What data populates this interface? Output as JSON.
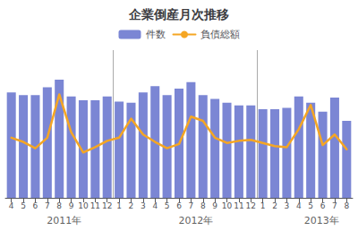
{
  "chart_data": {
    "type": "bar",
    "title": "企業倒産月次推移",
    "categories": [
      "4",
      "5",
      "6",
      "7",
      "8",
      "9",
      "10",
      "11",
      "12",
      "1",
      "2",
      "3",
      "4",
      "5",
      "6",
      "7",
      "8",
      "9",
      "10",
      "11",
      "12",
      "1",
      "2",
      "3",
      "4",
      "5",
      "6",
      "7",
      "8"
    ],
    "series": [
      {
        "name": "件数",
        "type": "bar",
        "color": "#7b86d4",
        "values": [
          82,
          80,
          80,
          86,
          92,
          79,
          76,
          76,
          79,
          75,
          74,
          82,
          87,
          80,
          85,
          90,
          80,
          77,
          74,
          72,
          72,
          69,
          69,
          70,
          79,
          74,
          67,
          78,
          60
        ]
      },
      {
        "name": "負債総額",
        "type": "line",
        "color": "#f5a623",
        "axis": "y2",
        "values": [
          57,
          53,
          47,
          57,
          98,
          62,
          43,
          48,
          54,
          57,
          75,
          60,
          53,
          47,
          51,
          77,
          73,
          57,
          52,
          54,
          55,
          52,
          49,
          48,
          65,
          88,
          50,
          60,
          46
        ]
      }
    ],
    "ylim": [
      0,
      115
    ],
    "y2lim": [
      0,
      140
    ],
    "tick_labels": "x",
    "grid": false,
    "legend": "top",
    "annotations": [
      {
        "text": "　2011年",
        "x": 4.0
      },
      {
        "text": "　2012年",
        "x": 15.0
      },
      {
        "text": "　2013年",
        "x": 25.5
      }
    ],
    "dividers": {
      "x": [
        8.5,
        20.5
      ],
      "color": "#aaaaaa"
    }
  }
}
